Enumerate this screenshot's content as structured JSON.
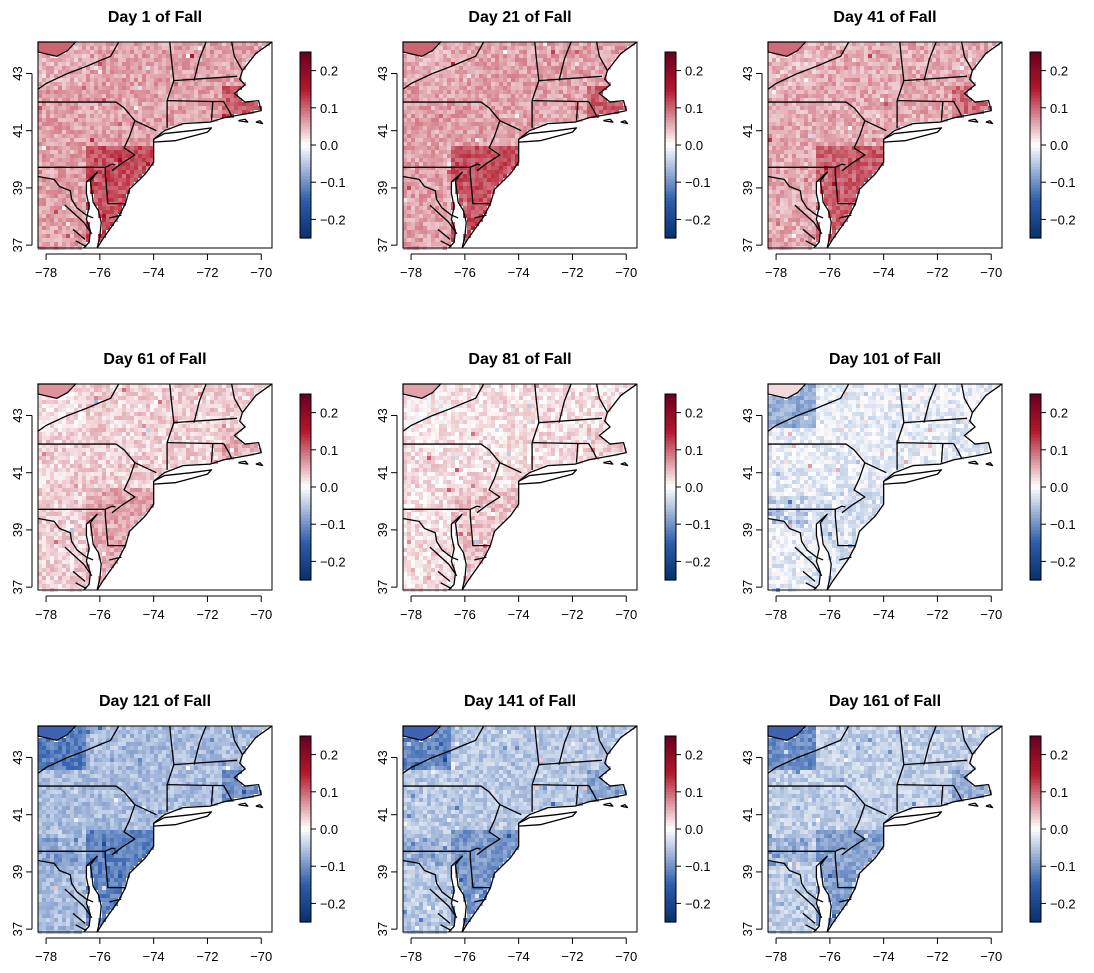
{
  "figure": {
    "panel_titles": [
      "Day 1 of Fall",
      "Day 21 of Fall",
      "Day 41 of Fall",
      "Day 61 of Fall",
      "Day 81 of Fall",
      "Day 101 of Fall",
      "Day 121 of Fall",
      "Day 141 of Fall",
      "Day 161 of Fall"
    ],
    "x_tick_labels": [
      "−78",
      "−76",
      "−74",
      "−72",
      "−70"
    ],
    "y_tick_labels": [
      "37",
      "39",
      "41",
      "43"
    ],
    "colorbar_tick_labels": [
      "0.2",
      "0.1",
      "0.0",
      "−0.1",
      "−0.2"
    ]
  },
  "chart_data": {
    "type": "heatmap",
    "layout": "3x3 small multiples",
    "x_tick_values": [
      -78,
      -76,
      -74,
      -72,
      -70
    ],
    "y_tick_values": [
      37,
      39,
      41,
      43
    ],
    "xlim": [
      -78.3,
      -69.6
    ],
    "ylim": [
      36.9,
      44.1
    ],
    "colorbar_range": [
      -0.25,
      0.25
    ],
    "colorbar_tick_values": [
      0.2,
      0.1,
      0.0,
      -0.1,
      -0.2
    ],
    "colors": {
      "low": "#08306b",
      "mid_low": "#2c5cab",
      "mid": "#ffffff",
      "mid_high": "#b2182b",
      "high": "#67001f"
    },
    "panels": [
      {
        "day": 1,
        "mean_value": 0.06
      },
      {
        "day": 21,
        "mean_value": 0.06
      },
      {
        "day": 41,
        "mean_value": 0.055
      },
      {
        "day": 61,
        "mean_value": 0.03
      },
      {
        "day": 81,
        "mean_value": 0.02
      },
      {
        "day": 101,
        "mean_value": -0.015
      },
      {
        "day": 121,
        "mean_value": -0.06
      },
      {
        "day": 141,
        "mean_value": -0.05
      },
      {
        "day": 161,
        "mean_value": -0.045
      }
    ]
  }
}
